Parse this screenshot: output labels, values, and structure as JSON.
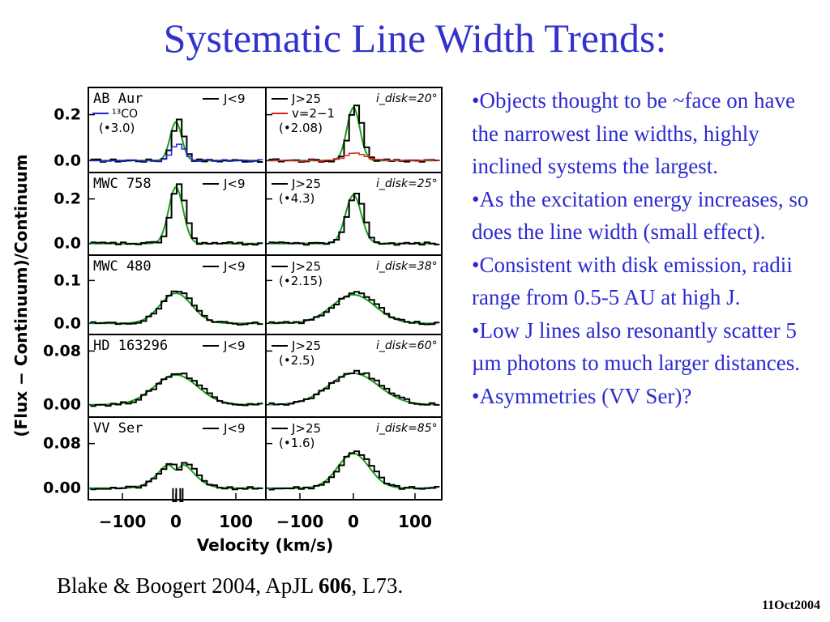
{
  "slide": {
    "title": "Systematic Line Width Trends:",
    "bullets": [
      "•Objects thought to be ~face on have the narrowest line widths, highly inclined systems the largest.",
      "•As the excitation energy increases, so does the line width (small effect).",
      "•Consistent with disk emission, radii range from 0.5-5 AU at high J.",
      "•Low J lines also resonantly scatter 5 µm photons to much larger distances.",
      "•Asymmetries (VV Ser)?"
    ],
    "citation_prefix": "Blake & Boogert 2004, ApJL ",
    "citation_volume": "606",
    "citation_suffix": ", L73.",
    "date": "11Oct2004"
  },
  "figure": {
    "ylabel": "(Flux − Continuum)/Continuum",
    "xlabel": "Velocity (km/s)",
    "xticks": [
      "−100",
      "0",
      "100",
      "−100",
      "0",
      "100"
    ],
    "colors": {
      "black": "#000000",
      "green": "#1aa01a",
      "blue": "#2222dd",
      "red": "#dd2222"
    },
    "panels": [
      {
        "object": "AB Aur",
        "yticks": [
          "0.2",
          "0.0"
        ],
        "left_legend": [
          "J<9"
        ],
        "left_extra": [
          "¹³CO",
          "(•3.0)"
        ],
        "right_legend": [
          "J>25",
          "v=2−1",
          "(•2.08)"
        ],
        "inclination": "i_disk=20°"
      },
      {
        "object": "MWC 758",
        "yticks": [
          "0.2",
          "0.0"
        ],
        "left_legend": [
          "J<9"
        ],
        "right_legend": [
          "J>25",
          "(•4.3)"
        ],
        "inclination": "i_disk=25°"
      },
      {
        "object": "MWC 480",
        "yticks": [
          "0.1",
          "0.0"
        ],
        "left_legend": [
          "J<9"
        ],
        "right_legend": [
          "J>25",
          "(•2.15)"
        ],
        "inclination": "i_disk=38°"
      },
      {
        "object": "HD 163296",
        "yticks": [
          "0.08",
          "0.00"
        ],
        "left_legend": [
          "J<9"
        ],
        "right_legend": [
          "J>25",
          "(•2.5)"
        ],
        "inclination": "i_disk=60°"
      },
      {
        "object": "VV Ser",
        "yticks": [
          "0.08",
          "0.00"
        ],
        "left_legend": [
          "J<9"
        ],
        "right_legend": [
          "J>25",
          "(•1.6)"
        ],
        "inclination": "i_disk=85°"
      }
    ]
  }
}
